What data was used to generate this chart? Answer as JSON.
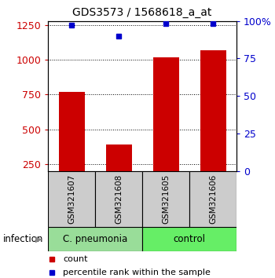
{
  "title": "GDS3573 / 1568618_a_at",
  "samples": [
    "GSM321607",
    "GSM321608",
    "GSM321605",
    "GSM321606"
  ],
  "counts": [
    770,
    390,
    1020,
    1070
  ],
  "percentiles": [
    97,
    90,
    98,
    98
  ],
  "ylim_left": [
    200,
    1280
  ],
  "ylim_right": [
    0,
    100
  ],
  "yticks_left": [
    250,
    500,
    750,
    1000,
    1250
  ],
  "yticks_right": [
    0,
    25,
    50,
    75,
    100
  ],
  "ytick_labels_right": [
    "0",
    "25",
    "50",
    "75",
    "100%"
  ],
  "bar_color": "#cc0000",
  "dot_color": "#0000cc",
  "group1_label": "C. pneumonia",
  "group1_color": "#99dd99",
  "group2_label": "control",
  "group2_color": "#66ee66",
  "group_label": "infection",
  "legend_count_label": "count",
  "legend_pct_label": "percentile rank within the sample",
  "sample_box_color": "#cccccc",
  "bar_width": 0.55,
  "x_positions": [
    1,
    2,
    3,
    4
  ],
  "title_fontsize": 10,
  "tick_fontsize": 9,
  "sample_fontsize": 7.5,
  "group_fontsize": 8.5,
  "legend_fontsize": 8
}
